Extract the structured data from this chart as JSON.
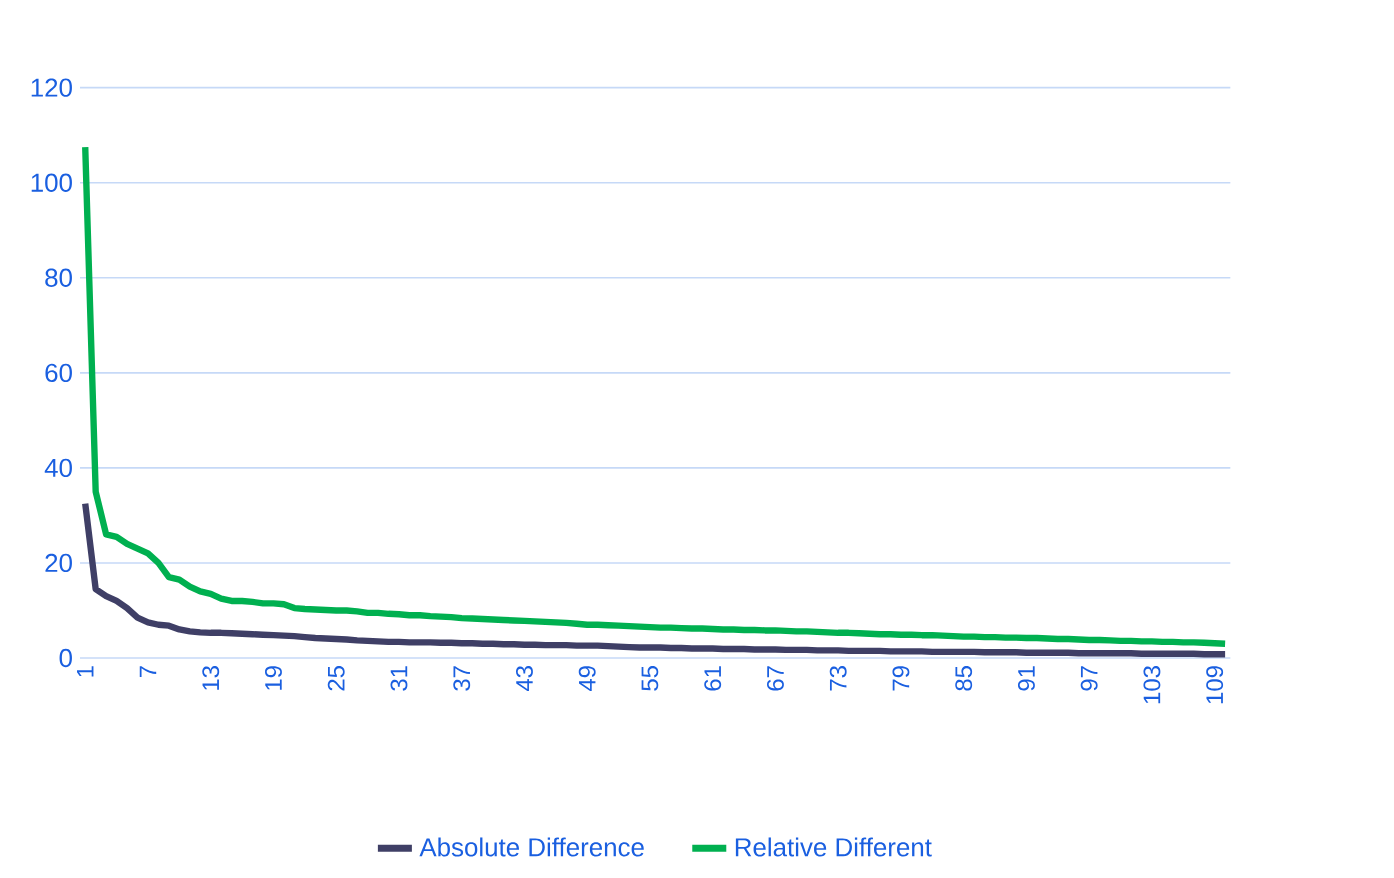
{
  "chart_data": {
    "type": "line",
    "categories": [
      "1",
      null,
      null,
      null,
      null,
      null,
      "7",
      null,
      null,
      null,
      null,
      null,
      "13",
      null,
      null,
      null,
      null,
      null,
      "19",
      null,
      null,
      null,
      null,
      null,
      "25",
      null,
      null,
      null,
      null,
      null,
      "31",
      null,
      null,
      null,
      null,
      null,
      "37",
      null,
      null,
      null,
      null,
      null,
      "43",
      null,
      null,
      null,
      null,
      null,
      "49",
      null,
      null,
      null,
      null,
      null,
      "55",
      null,
      null,
      null,
      null,
      null,
      "61",
      null,
      null,
      null,
      null,
      null,
      "67",
      null,
      null,
      null,
      null,
      null,
      "73",
      null,
      null,
      null,
      null,
      null,
      "79",
      null,
      null,
      null,
      null,
      null,
      "85",
      null,
      null,
      null,
      null,
      null,
      "91",
      null,
      null,
      null,
      null,
      null,
      "97",
      null,
      null,
      null,
      null,
      null,
      "103",
      null,
      null,
      null,
      null,
      null,
      "109",
      null
    ],
    "series": [
      {
        "name": "Absolute Difference",
        "color": "#3f3f66",
        "values": [
          32.5,
          14.5,
          13,
          12,
          10.5,
          8.5,
          7.5,
          7,
          6.8,
          6,
          5.6,
          5.4,
          5.3,
          5.3,
          5.2,
          5.1,
          5,
          4.9,
          4.8,
          4.7,
          4.6,
          4.4,
          4.2,
          4.1,
          4,
          3.9,
          3.7,
          3.6,
          3.5,
          3.4,
          3.4,
          3.3,
          3.3,
          3.3,
          3.2,
          3.2,
          3.1,
          3.1,
          3,
          3,
          2.9,
          2.9,
          2.8,
          2.8,
          2.7,
          2.7,
          2.7,
          2.6,
          2.6,
          2.6,
          2.5,
          2.4,
          2.3,
          2.2,
          2.2,
          2.2,
          2.1,
          2.1,
          2,
          2,
          2,
          1.9,
          1.9,
          1.9,
          1.8,
          1.8,
          1.8,
          1.7,
          1.7,
          1.7,
          1.6,
          1.6,
          1.6,
          1.5,
          1.5,
          1.5,
          1.5,
          1.4,
          1.4,
          1.4,
          1.4,
          1.3,
          1.3,
          1.3,
          1.3,
          1.3,
          1.2,
          1.2,
          1.2,
          1.2,
          1.1,
          1.1,
          1.1,
          1.1,
          1.1,
          1,
          1,
          1,
          1,
          1,
          1,
          0.9,
          0.9,
          0.9,
          0.9,
          0.9,
          0.9,
          0.8,
          0.8,
          0.8
        ]
      },
      {
        "name": "Relative Different",
        "color": "#00b050",
        "values": [
          107.5,
          35,
          26,
          25.5,
          24,
          23,
          22,
          20,
          17,
          16.5,
          15,
          14,
          13.5,
          12.5,
          12,
          12,
          11.8,
          11.5,
          11.5,
          11.3,
          10.5,
          10.3,
          10.2,
          10.1,
          10,
          10,
          9.8,
          9.5,
          9.5,
          9.3,
          9.2,
          9,
          9,
          8.8,
          8.7,
          8.6,
          8.4,
          8.3,
          8.2,
          8.1,
          8,
          7.9,
          7.8,
          7.7,
          7.6,
          7.5,
          7.4,
          7.2,
          7,
          7,
          6.9,
          6.8,
          6.7,
          6.6,
          6.5,
          6.4,
          6.4,
          6.3,
          6.2,
          6.2,
          6.1,
          6,
          6,
          5.9,
          5.9,
          5.8,
          5.8,
          5.7,
          5.6,
          5.6,
          5.5,
          5.4,
          5.3,
          5.3,
          5.2,
          5.1,
          5,
          5,
          4.9,
          4.9,
          4.8,
          4.8,
          4.7,
          4.6,
          4.5,
          4.5,
          4.4,
          4.4,
          4.3,
          4.3,
          4.2,
          4.2,
          4.1,
          4,
          4,
          3.9,
          3.8,
          3.8,
          3.7,
          3.6,
          3.6,
          3.5,
          3.5,
          3.4,
          3.4,
          3.3,
          3.3,
          3.2,
          3.1,
          3
        ]
      }
    ],
    "ylim": [
      0,
      120
    ],
    "yticks": [
      0,
      20,
      40,
      60,
      80,
      100,
      120
    ],
    "grid": "y",
    "legend": "bottom",
    "marker": "none",
    "line_style": "solid"
  }
}
